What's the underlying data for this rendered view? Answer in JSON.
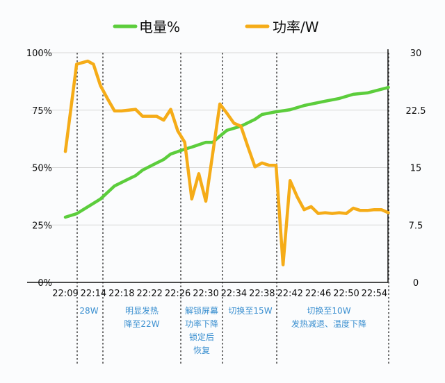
{
  "chart_data": {
    "type": "line",
    "title": "",
    "legend_position": "top",
    "grid": true,
    "x_tick_labels": [
      "22:09",
      "22:14",
      "22:18",
      "22:22",
      "22:26",
      "22:30",
      "22:34",
      "22:38",
      "22:42",
      "22:46",
      "22:50",
      "22:54"
    ],
    "y_left": {
      "ticks": [
        "0%",
        "25%",
        "50%",
        "75%",
        "100%"
      ],
      "range": [
        0,
        100
      ]
    },
    "y_right": {
      "ticks": [
        "0",
        "7.5",
        "15",
        "22.5",
        "30"
      ],
      "range": [
        0,
        30
      ]
    },
    "series": [
      {
        "name": "电量%",
        "axis": "left",
        "color": "#5ccd3c",
        "points": [
          [
            "22:09",
            28.4
          ],
          [
            "22:11",
            29.9
          ],
          [
            "22:13",
            32.9
          ],
          [
            "22:15",
            36.3
          ],
          [
            "22:17",
            42.0
          ],
          [
            "22:18",
            43.5
          ],
          [
            "22:19",
            45.0
          ],
          [
            "22:20",
            46.5
          ],
          [
            "22:21",
            48.9
          ],
          [
            "22:23",
            52.0
          ],
          [
            "22:24",
            53.5
          ],
          [
            "22:25",
            55.9
          ],
          [
            "22:27",
            58.0
          ],
          [
            "22:28",
            58.9
          ],
          [
            "22:30",
            61.0
          ],
          [
            "22:31",
            61.0
          ],
          [
            "22:32",
            63.7
          ],
          [
            "22:33",
            66.2
          ],
          [
            "22:35",
            68.0
          ],
          [
            "22:37",
            71.0
          ],
          [
            "22:38",
            73.1
          ],
          [
            "22:40",
            74.3
          ],
          [
            "22:42",
            75.2
          ],
          [
            "22:44",
            77.0
          ],
          [
            "22:47",
            78.9
          ],
          [
            "22:49",
            80.1
          ],
          [
            "22:51",
            81.9
          ],
          [
            "22:53",
            82.5
          ],
          [
            "22:56",
            84.9
          ]
        ]
      },
      {
        "name": "功率/W",
        "axis": "right",
        "color": "#f5ac18",
        "points": [
          [
            "22:09",
            17.1
          ],
          [
            "22:11",
            28.5
          ],
          [
            "22:13",
            28.9
          ],
          [
            "22:14",
            28.5
          ],
          [
            "22:15",
            25.7
          ],
          [
            "22:16",
            24.0
          ],
          [
            "22:17",
            22.4
          ],
          [
            "22:18",
            22.4
          ],
          [
            "22:20",
            22.6
          ],
          [
            "22:21",
            21.7
          ],
          [
            "22:23",
            21.7
          ],
          [
            "22:24",
            21.2
          ],
          [
            "22:25",
            22.6
          ],
          [
            "22:26",
            19.8
          ],
          [
            "22:27",
            18.3
          ],
          [
            "22:28",
            10.9
          ],
          [
            "22:29",
            14.2
          ],
          [
            "22:30",
            10.6
          ],
          [
            "22:32",
            23.3
          ],
          [
            "22:33",
            22.1
          ],
          [
            "22:34",
            20.8
          ],
          [
            "22:35",
            20.4
          ],
          [
            "22:36",
            17.7
          ],
          [
            "22:37",
            15.1
          ],
          [
            "22:38",
            15.6
          ],
          [
            "22:39",
            15.3
          ],
          [
            "22:40",
            15.3
          ],
          [
            "22:41",
            2.3
          ],
          [
            "22:42",
            13.3
          ],
          [
            "22:43",
            11.2
          ],
          [
            "22:44",
            9.5
          ],
          [
            "22:45",
            9.9
          ],
          [
            "22:46",
            9.0
          ],
          [
            "22:47",
            9.1
          ],
          [
            "22:48",
            9.0
          ],
          [
            "22:49",
            9.1
          ],
          [
            "22:50",
            9.0
          ],
          [
            "22:51",
            9.7
          ],
          [
            "22:52",
            9.4
          ],
          [
            "22:53",
            9.4
          ],
          [
            "22:54",
            9.5
          ],
          [
            "22:55",
            9.5
          ],
          [
            "22:56",
            9.1
          ]
        ]
      }
    ],
    "annotations": [
      {
        "lines": [
          "28W"
        ]
      },
      {
        "lines": [
          "明显发热",
          "降至22W"
        ]
      },
      {
        "lines": [
          "解锁屏幕",
          "功率下降",
          "锁定后",
          "恢复"
        ]
      },
      {
        "lines": [
          "切换至15W"
        ]
      },
      {
        "lines": [
          "切换至10W",
          "发热减退、温度下降"
        ]
      }
    ],
    "annotation_color": "#3a8fd0"
  }
}
